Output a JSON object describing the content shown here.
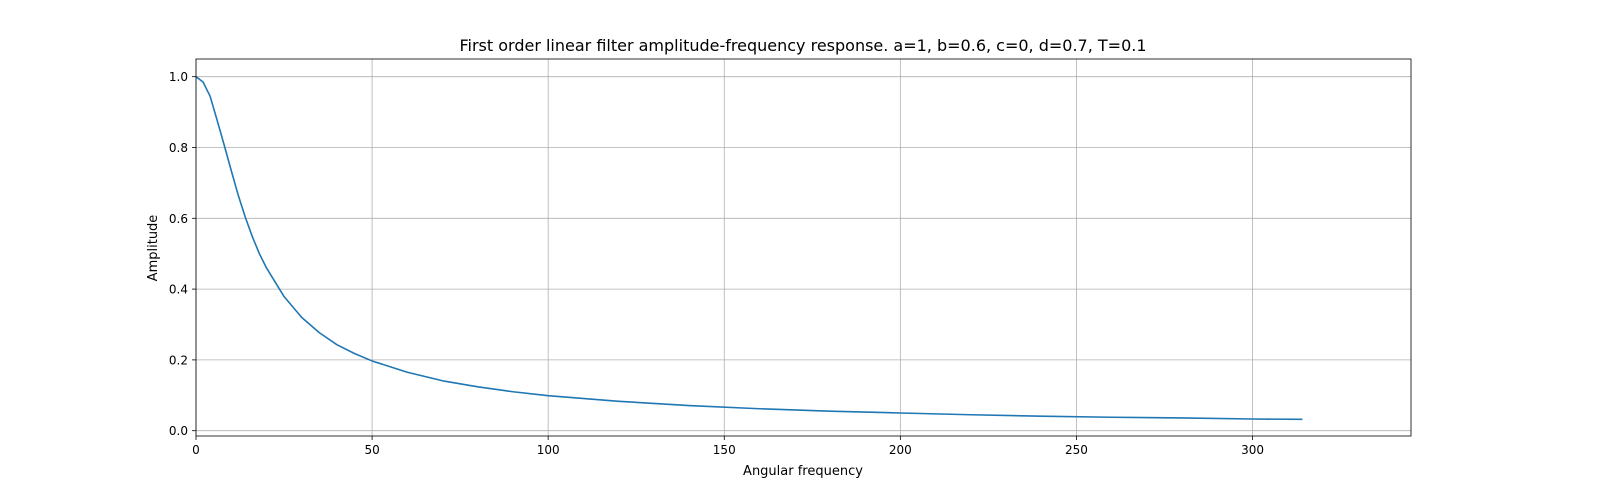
{
  "chart_data": {
    "type": "line",
    "title": "First order linear filter amplitude-frequency response. a=1, b=0.6, c=0, d=0.7, T=0.1",
    "xlabel": "Angular frequency",
    "ylabel": "Amplitude",
    "xlim": [
      0,
      345
    ],
    "ylim": [
      -0.015,
      1.05
    ],
    "x_ticks": [
      0,
      50,
      100,
      150,
      200,
      250,
      300
    ],
    "y_ticks": [
      0.0,
      0.2,
      0.4,
      0.6,
      0.8,
      1.0
    ],
    "x_tick_labels": [
      "0",
      "50",
      "100",
      "150",
      "200",
      "250",
      "300"
    ],
    "y_tick_labels": [
      "0.0",
      "0.2",
      "0.4",
      "0.6",
      "0.8",
      "1.0"
    ],
    "grid": true,
    "legend": "none",
    "series": [
      {
        "color": "#1f77b4",
        "x": [
          0,
          2,
          4,
          6,
          8,
          10,
          12,
          14,
          16,
          18,
          20,
          25,
          30,
          35,
          40,
          45,
          50,
          60,
          70,
          80,
          90,
          100,
          120,
          140,
          160,
          180,
          200,
          220,
          240,
          260,
          280,
          300,
          314.16
        ],
        "y": [
          1.0,
          0.985,
          0.945,
          0.877,
          0.807,
          0.735,
          0.665,
          0.603,
          0.548,
          0.5,
          0.46,
          0.379,
          0.32,
          0.277,
          0.243,
          0.218,
          0.197,
          0.165,
          0.141,
          0.124,
          0.11,
          0.099,
          0.083,
          0.071,
          0.062,
          0.055,
          0.05,
          0.045,
          0.041,
          0.038,
          0.036,
          0.033,
          0.032
        ]
      }
    ]
  }
}
